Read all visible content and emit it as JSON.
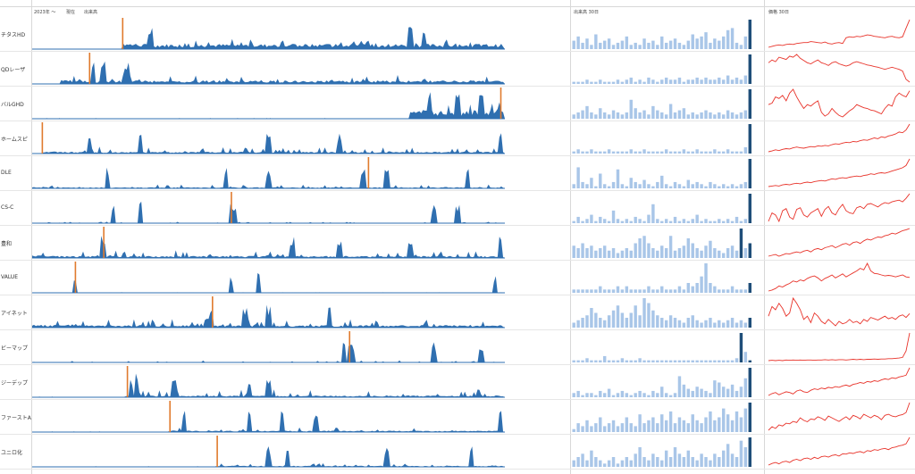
{
  "header": {
    "range_label": "2023年 〜",
    "now_label": "現在",
    "volume_label": "出来高",
    "volume30_label": "出来高 30日",
    "price30_label": "価格 30日"
  },
  "colors": {
    "volume_bar": "#2f6fb0",
    "highlight_bar": "#e07b2e",
    "recent_bar": "#a9c6e8",
    "recent_last": "#1f4e79",
    "price_line": "#e8332a"
  },
  "chart_data": {
    "type": "bar",
    "description_free": true,
    "rows": [
      {
        "label": "チタスHD",
        "start": 0.19,
        "peak": 0.19,
        "level": 0.15,
        "noise": 0.12,
        "spikes": [
          0.25,
          0.8,
          0.83
        ],
        "recent": [
          4,
          6,
          3,
          5,
          2,
          7,
          3,
          4,
          5,
          2,
          3,
          4,
          6,
          2,
          3,
          2,
          5,
          3,
          4,
          2,
          6,
          3,
          4,
          5,
          3,
          2,
          4,
          7,
          5,
          6,
          8,
          3,
          5,
          4,
          6,
          9,
          10,
          3,
          2,
          6,
          14
        ],
        "price": [
          40,
          42,
          44,
          45,
          44,
          46,
          47,
          46,
          48,
          49,
          50,
          50,
          52,
          51,
          50,
          49,
          51,
          48,
          47,
          49,
          50,
          48,
          60,
          62,
          61,
          63,
          62,
          64,
          66,
          65,
          63,
          62,
          61,
          60,
          62,
          63,
          61,
          60,
          62,
          80,
          98
        ]
      },
      {
        "label": "QDレーザ",
        "start": 0.06,
        "peak": 0.12,
        "level": 0.1,
        "noise": 0.12,
        "spikes": [
          0.13,
          0.15,
          0.2
        ],
        "recent": [
          1,
          1,
          1,
          2,
          1,
          1,
          2,
          1,
          1,
          1,
          2,
          1,
          2,
          3,
          1,
          2,
          1,
          3,
          2,
          1,
          2,
          3,
          2,
          2,
          3,
          1,
          2,
          2,
          3,
          2,
          3,
          2,
          2,
          3,
          2,
          4,
          2,
          3,
          2,
          4,
          14
        ],
        "price": [
          70,
          75,
          72,
          80,
          78,
          76,
          82,
          80,
          85,
          78,
          74,
          70,
          68,
          72,
          75,
          70,
          68,
          65,
          70,
          72,
          68,
          66,
          64,
          66,
          70,
          72,
          70,
          68,
          66,
          65,
          63,
          62,
          60,
          58,
          60,
          62,
          60,
          58,
          55,
          40,
          35
        ]
      },
      {
        "label": "バルGHD",
        "start": 0.8,
        "peak": 0.99,
        "level": 0.25,
        "noise": 0.2,
        "spikes": [
          0.84,
          0.9,
          0.95
        ],
        "recent": [
          2,
          3,
          4,
          6,
          3,
          2,
          5,
          3,
          2,
          4,
          3,
          2,
          3,
          9,
          5,
          3,
          4,
          2,
          6,
          4,
          3,
          2,
          7,
          3,
          4,
          5,
          2,
          3,
          2,
          3,
          4,
          3,
          2,
          3,
          2,
          4,
          3,
          2,
          3,
          4,
          14
        ],
        "price": [
          60,
          62,
          70,
          68,
          72,
          65,
          75,
          80,
          70,
          62,
          55,
          60,
          58,
          62,
          65,
          50,
          45,
          48,
          55,
          50,
          46,
          44,
          48,
          52,
          55,
          60,
          58,
          56,
          55,
          53,
          52,
          50,
          48,
          55,
          60,
          58,
          70,
          75,
          72,
          70,
          78
        ]
      },
      {
        "label": "ホームスピ",
        "start": 0.02,
        "peak": 0.02,
        "level": 0.05,
        "noise": 0.1,
        "spikes": [
          0.12,
          0.23,
          0.5,
          0.65,
          0.99
        ],
        "recent": [
          1,
          2,
          1,
          1,
          2,
          1,
          1,
          1,
          2,
          1,
          1,
          1,
          1,
          2,
          1,
          1,
          2,
          1,
          1,
          1,
          1,
          2,
          1,
          1,
          1,
          2,
          1,
          1,
          2,
          1,
          1,
          1,
          2,
          1,
          1,
          2,
          1,
          1,
          1,
          3,
          14
        ],
        "price": [
          20,
          22,
          25,
          23,
          26,
          28,
          27,
          30,
          32,
          30,
          29,
          31,
          33,
          32,
          35,
          34,
          36,
          35,
          38,
          40,
          39,
          42,
          44,
          43,
          46,
          45,
          48,
          50,
          49,
          52,
          55,
          53,
          58,
          56,
          60,
          62,
          65,
          70,
          68,
          75,
          90
        ]
      },
      {
        "label": "DLE",
        "start": 0.0,
        "peak": 0.71,
        "level": 0.03,
        "noise": 0.06,
        "spikes": [
          0.16,
          0.41,
          0.5,
          0.7,
          0.75,
          0.92
        ],
        "recent": [
          2,
          10,
          3,
          2,
          5,
          1,
          7,
          2,
          1,
          3,
          9,
          2,
          1,
          5,
          3,
          2,
          4,
          2,
          1,
          3,
          6,
          2,
          1,
          3,
          2,
          1,
          4,
          2,
          3,
          2,
          1,
          3,
          2,
          1,
          2,
          1,
          2,
          1,
          2,
          3,
          14
        ],
        "price": [
          10,
          11,
          12,
          11,
          13,
          14,
          13,
          15,
          16,
          15,
          17,
          18,
          17,
          19,
          20,
          21,
          20,
          22,
          24,
          23,
          25,
          26,
          25,
          27,
          28,
          29,
          28,
          30,
          31,
          33,
          32,
          34,
          35,
          34,
          36,
          38,
          40,
          42,
          44,
          48,
          60
        ]
      },
      {
        "label": "CS-C",
        "start": 0.0,
        "peak": 0.42,
        "level": 0.01,
        "noise": 0.02,
        "spikes": [
          0.17,
          0.23,
          0.42,
          0.43,
          0.85,
          0.9
        ],
        "recent": [
          1,
          3,
          1,
          2,
          4,
          1,
          3,
          2,
          1,
          6,
          2,
          1,
          2,
          1,
          3,
          2,
          1,
          4,
          9,
          2,
          1,
          2,
          1,
          3,
          1,
          2,
          1,
          2,
          4,
          1,
          2,
          1,
          1,
          2,
          1,
          2,
          1,
          3,
          1,
          2,
          14
        ],
        "price": [
          30,
          50,
          45,
          30,
          55,
          60,
          40,
          35,
          58,
          62,
          45,
          40,
          50,
          55,
          60,
          42,
          58,
          65,
          50,
          45,
          60,
          70,
          55,
          50,
          48,
          62,
          65,
          60,
          70,
          72,
          68,
          64,
          70,
          74,
          72,
          76,
          78,
          80,
          76,
          84,
          95
        ]
      },
      {
        "label": "豊和",
        "start": 0.0,
        "peak": 0.15,
        "level": 0.06,
        "noise": 0.1,
        "spikes": [
          0.15,
          0.55,
          0.65,
          0.8,
          0.99
        ],
        "recent": [
          5,
          4,
          6,
          4,
          5,
          3,
          4,
          5,
          3,
          4,
          2,
          3,
          4,
          3,
          6,
          8,
          9,
          6,
          4,
          3,
          5,
          4,
          9,
          3,
          4,
          5,
          8,
          6,
          4,
          3,
          5,
          7,
          4,
          3,
          2,
          4,
          5,
          3,
          12,
          4,
          6
        ],
        "price": [
          30,
          32,
          34,
          30,
          33,
          36,
          35,
          38,
          40,
          38,
          42,
          44,
          40,
          46,
          48,
          45,
          50,
          52,
          55,
          50,
          54,
          58,
          60,
          56,
          62,
          64,
          60,
          66,
          70,
          68,
          72,
          75,
          74,
          78,
          80,
          84,
          82,
          86,
          90,
          92,
          95
        ]
      },
      {
        "label": "VALUE",
        "start": 0.0,
        "peak": 0.09,
        "level": 0.0,
        "noise": 0.01,
        "spikes": [
          0.09,
          0.42,
          0.48,
          0.98
        ],
        "recent": [
          1,
          1,
          1,
          1,
          1,
          1,
          2,
          1,
          1,
          1,
          2,
          1,
          2,
          1,
          1,
          1,
          1,
          2,
          1,
          1,
          2,
          1,
          1,
          1,
          2,
          1,
          3,
          2,
          3,
          5,
          9,
          3,
          2,
          1,
          1,
          1,
          2,
          1,
          1,
          1,
          3
        ],
        "price": [
          30,
          32,
          35,
          40,
          38,
          42,
          45,
          50,
          48,
          52,
          50,
          55,
          58,
          60,
          56,
          50,
          55,
          58,
          62,
          56,
          60,
          64,
          58,
          62,
          66,
          70,
          75,
          72,
          85,
          70,
          65,
          64,
          62,
          60,
          61,
          60,
          58,
          60,
          62,
          58,
          57
        ]
      },
      {
        "label": "アイネット",
        "start": 0.0,
        "peak": 0.38,
        "level": 0.07,
        "noise": 0.12,
        "spikes": [
          0.38,
          0.45,
          0.5,
          0.63
        ],
        "recent": [
          2,
          3,
          4,
          5,
          8,
          6,
          4,
          3,
          5,
          7,
          9,
          6,
          4,
          6,
          9,
          5,
          12,
          10,
          7,
          5,
          4,
          3,
          5,
          4,
          3,
          2,
          4,
          5,
          3,
          2,
          3,
          4,
          2,
          3,
          2,
          3,
          4,
          2,
          3,
          2,
          4
        ],
        "price": [
          60,
          75,
          70,
          80,
          72,
          60,
          65,
          88,
          80,
          70,
          55,
          60,
          50,
          65,
          60,
          52,
          48,
          55,
          50,
          45,
          52,
          48,
          50,
          55,
          50,
          52,
          48,
          55,
          52,
          58,
          56,
          54,
          57,
          60,
          56,
          58,
          55,
          60,
          62,
          58,
          64
        ]
      },
      {
        "label": "ビーマップ",
        "start": 0.0,
        "peak": 0.67,
        "level": 0.01,
        "noise": 0.03,
        "spikes": [
          0.66,
          0.67,
          0.68,
          0.85,
          0.95
        ],
        "recent": [
          1,
          1,
          1,
          2,
          1,
          1,
          1,
          3,
          1,
          1,
          1,
          2,
          1,
          1,
          1,
          2,
          1,
          1,
          1,
          1,
          1,
          1,
          1,
          1,
          1,
          1,
          1,
          1,
          1,
          1,
          1,
          1,
          1,
          1,
          1,
          1,
          1,
          2,
          14,
          5,
          1
        ],
        "price": [
          10,
          11,
          10,
          11,
          10,
          12,
          11,
          12,
          11,
          12,
          11,
          12,
          12,
          11,
          12,
          12,
          13,
          12,
          13,
          12,
          13,
          13,
          12,
          13,
          14,
          13,
          14,
          13,
          14,
          14,
          15,
          14,
          15,
          15,
          16,
          16,
          17,
          18,
          20,
          40,
          95
        ]
      },
      {
        "label": "ジーデップ",
        "start": 0.2,
        "peak": 0.2,
        "level": 0.05,
        "noise": 0.12,
        "spikes": [
          0.21,
          0.22,
          0.3,
          0.46,
          0.5
        ],
        "recent": [
          2,
          3,
          1,
          2,
          2,
          1,
          3,
          2,
          4,
          1,
          2,
          3,
          2,
          1,
          2,
          3,
          2,
          1,
          3,
          2,
          5,
          2,
          1,
          2,
          10,
          6,
          4,
          3,
          5,
          4,
          3,
          2,
          8,
          7,
          5,
          4,
          6,
          3,
          5,
          9,
          14
        ],
        "price": [
          20,
          25,
          28,
          22,
          26,
          30,
          28,
          24,
          32,
          35,
          30,
          28,
          34,
          38,
          36,
          40,
          38,
          42,
          40,
          44,
          42,
          46,
          48,
          45,
          50,
          52,
          55,
          53,
          58,
          56,
          60,
          58,
          62,
          65,
          63,
          68,
          66,
          70,
          72,
          75,
          95
        ]
      },
      {
        "label": "ファーストA",
        "start": 0.29,
        "peak": 0.29,
        "level": 0.04,
        "noise": 0.06,
        "spikes": [
          0.32,
          0.46,
          0.53,
          0.6,
          0.99
        ],
        "recent": [
          1,
          3,
          2,
          4,
          2,
          3,
          5,
          2,
          3,
          4,
          2,
          3,
          5,
          3,
          2,
          6,
          3,
          4,
          5,
          3,
          6,
          4,
          7,
          3,
          5,
          4,
          3,
          6,
          4,
          3,
          5,
          7,
          4,
          5,
          8,
          6,
          4,
          7,
          5,
          8,
          10
        ],
        "price": [
          20,
          30,
          25,
          35,
          32,
          40,
          38,
          45,
          42,
          55,
          48,
          44,
          52,
          50,
          58,
          54,
          48,
          60,
          55,
          50,
          45,
          52,
          58,
          50,
          62,
          58,
          52,
          65,
          60,
          55,
          62,
          58,
          50,
          62,
          65,
          60,
          58,
          62,
          64,
          70,
          98
        ]
      },
      {
        "label": "ユニロ化",
        "start": 0.39,
        "peak": 0.39,
        "level": 0.03,
        "noise": 0.05,
        "spikes": [
          0.5,
          0.54,
          0.75,
          0.93
        ],
        "recent": [
          2,
          3,
          4,
          2,
          5,
          3,
          2,
          1,
          2,
          3,
          1,
          2,
          3,
          2,
          4,
          6,
          3,
          2,
          4,
          3,
          2,
          5,
          3,
          6,
          4,
          3,
          5,
          3,
          2,
          4,
          3,
          2,
          4,
          3,
          5,
          7,
          4,
          3,
          8,
          6,
          9
        ],
        "price": [
          10,
          15,
          18,
          14,
          20,
          22,
          18,
          25,
          28,
          24,
          30,
          32,
          28,
          34,
          30,
          36,
          38,
          35,
          40,
          42,
          38,
          45,
          44,
          48,
          46,
          50,
          52,
          48,
          55,
          53,
          58,
          56,
          60,
          62,
          58,
          64,
          66,
          70,
          72,
          76,
          96
        ]
      }
    ]
  }
}
